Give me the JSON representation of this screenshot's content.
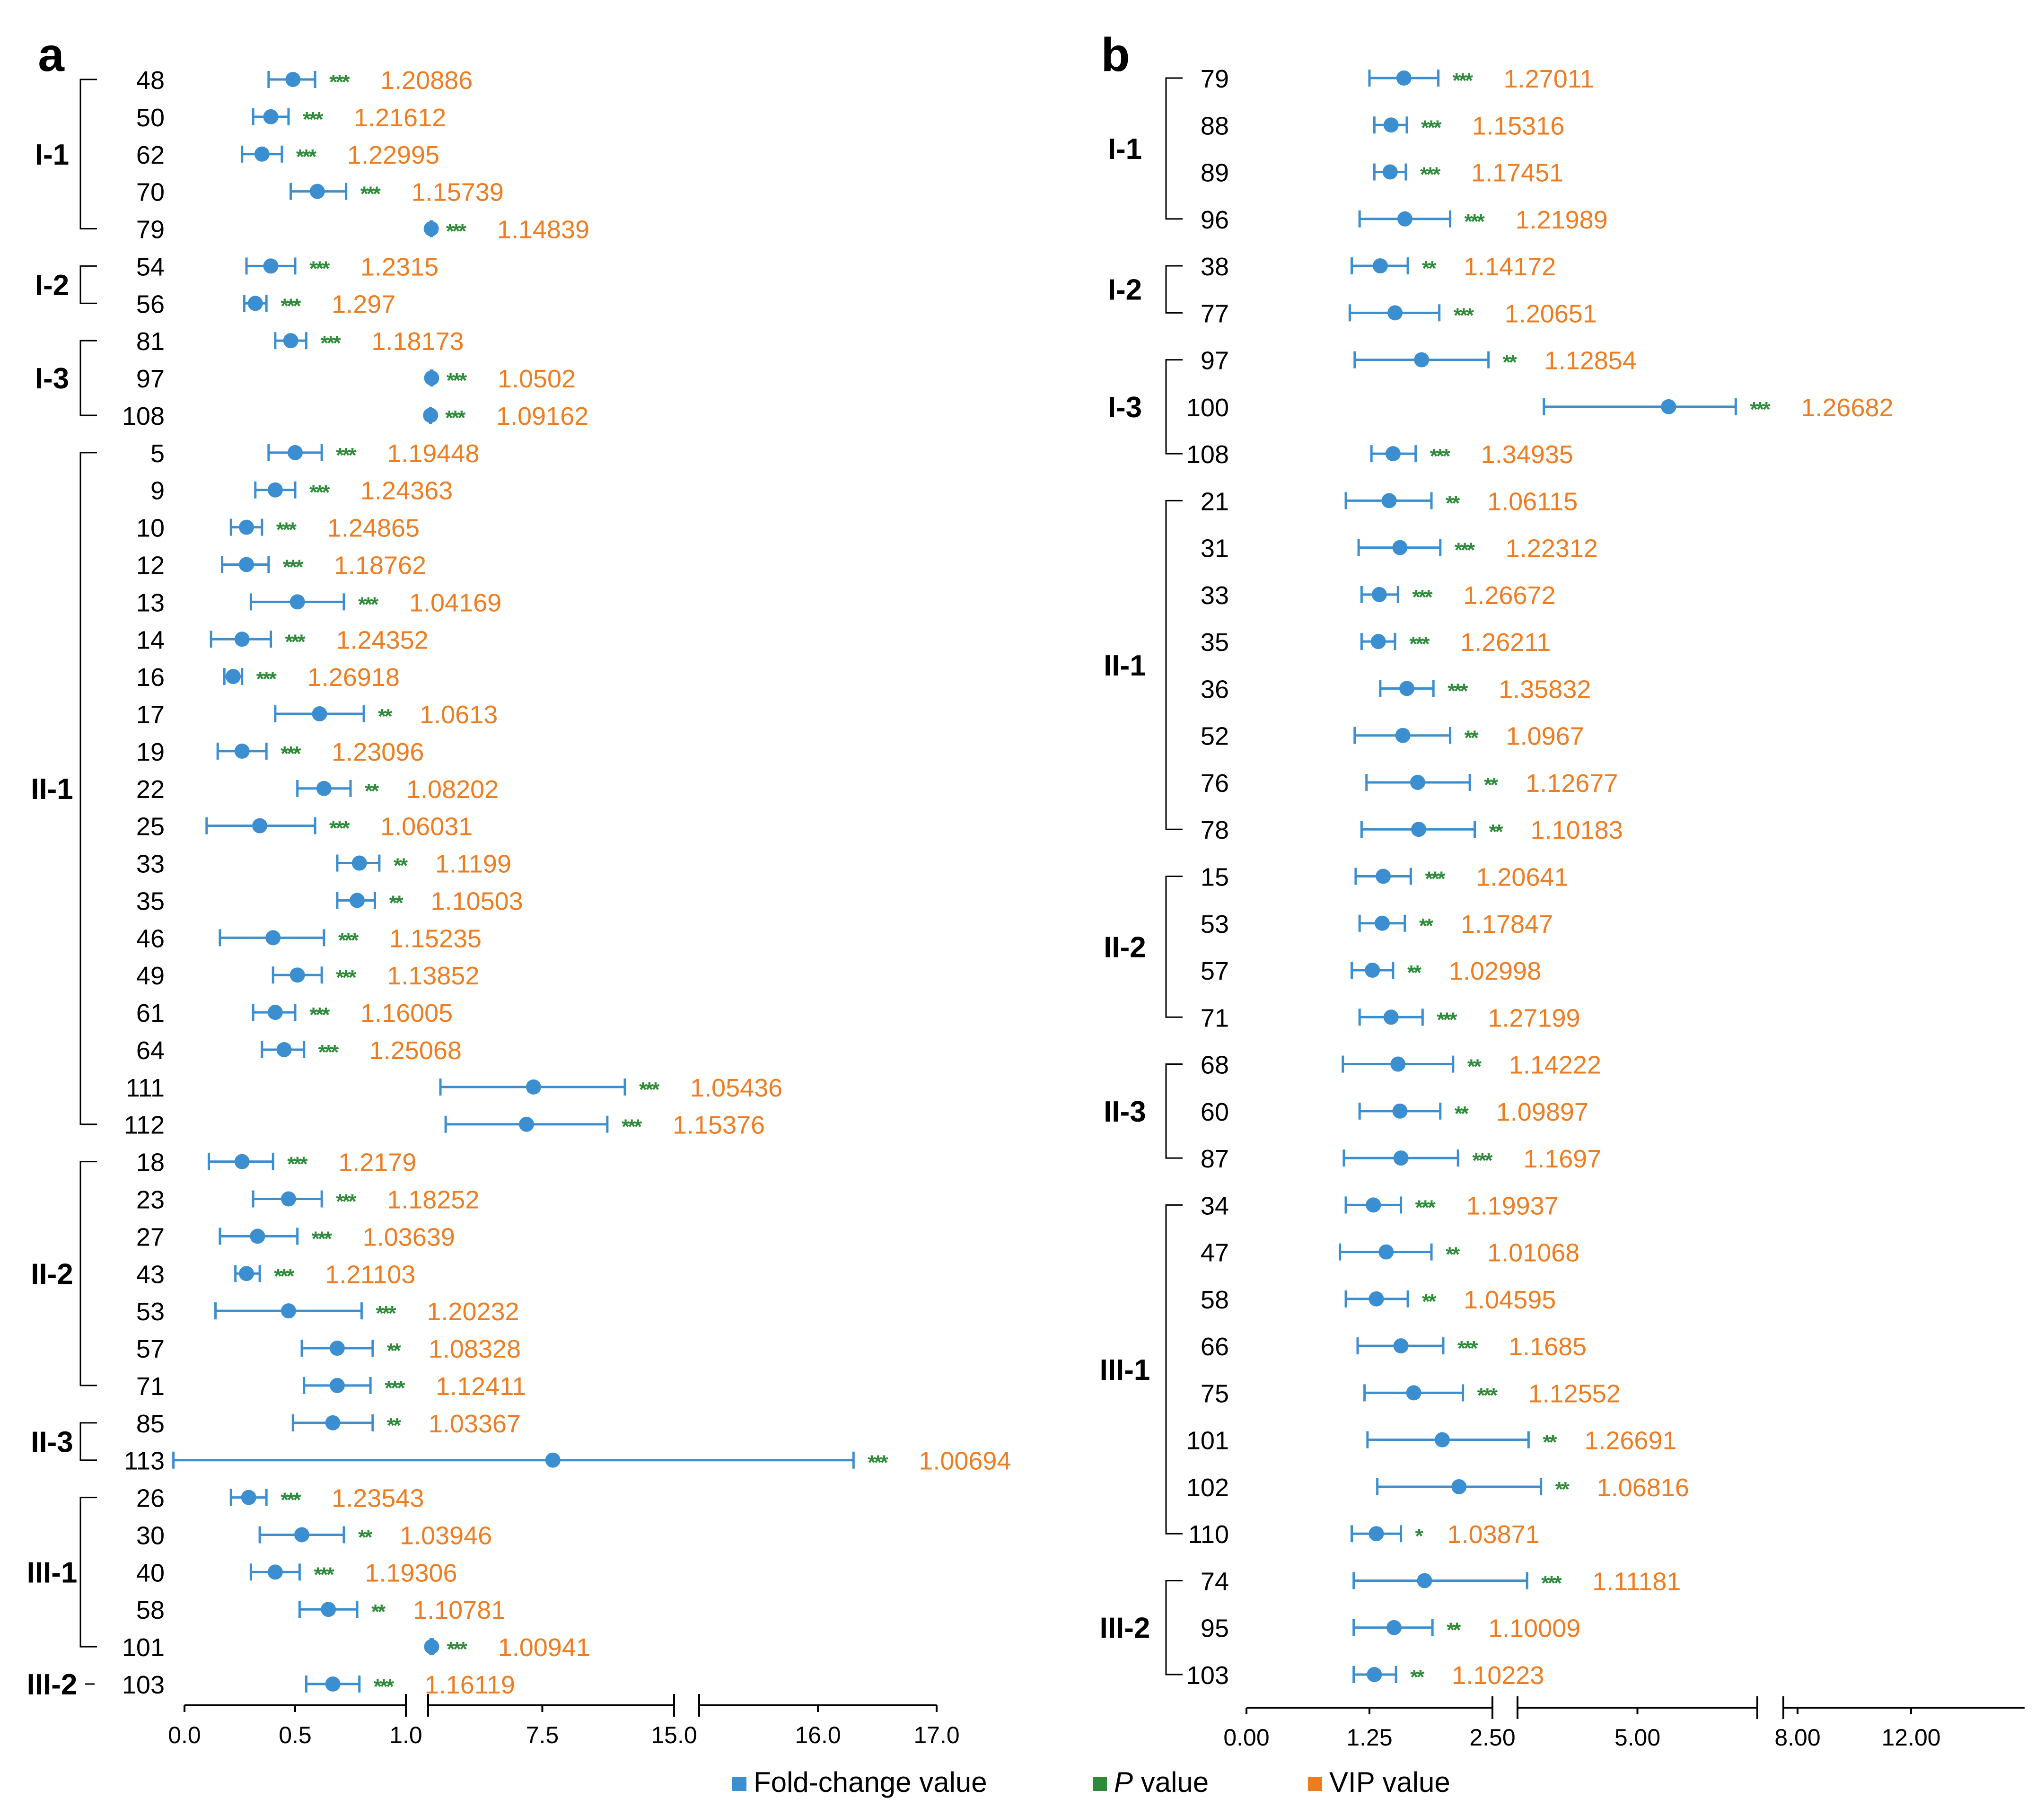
{
  "colors": {
    "fold_change": "#3b8fd0",
    "p_value": "#2e8b3a",
    "vip": "#ee7d22",
    "axis": "#000000"
  },
  "legend": [
    {
      "key": "fold_change",
      "label": "Fold-change value",
      "italic_prefix": ""
    },
    {
      "key": "p_value",
      "label": " value",
      "italic_prefix": "P"
    },
    {
      "key": "vip",
      "label": "VIP value",
      "italic_prefix": ""
    }
  ],
  "chart_data": [
    {
      "panel_label": "a",
      "type": "scatter",
      "title": "",
      "xlabel": "",
      "ylabel": "",
      "x_axis": {
        "segments": [
          {
            "range": [
              0,
              1.0
            ],
            "ticks": [
              "0.0",
              "0.5",
              "1.0"
            ],
            "tick_values": [
              0,
              0.5,
              1.0
            ]
          },
          {
            "range": [
              1.0,
              15.0
            ],
            "ticks": [
              "7.5",
              "15.0"
            ],
            "tick_values": [
              7.5,
              15.0
            ]
          },
          {
            "range": [
              15.0,
              17.0
            ],
            "ticks": [
              "16.0",
              "17.0"
            ],
            "tick_values": [
              16.0,
              17.0
            ]
          }
        ]
      },
      "groups": [
        {
          "name": "I-1",
          "items": [
            {
              "id": "48",
              "fc": 0.49,
              "lo": 0.38,
              "hi": 0.59,
              "p": "***",
              "vip": "1.20886"
            },
            {
              "id": "50",
              "fc": 0.39,
              "lo": 0.31,
              "hi": 0.47,
              "p": "***",
              "vip": "1.21612"
            },
            {
              "id": "62",
              "fc": 0.35,
              "lo": 0.26,
              "hi": 0.44,
              "p": "***",
              "vip": "1.22995"
            },
            {
              "id": "70",
              "fc": 0.6,
              "lo": 0.48,
              "hi": 0.73,
              "p": "***",
              "vip": "1.15739"
            },
            {
              "id": "79",
              "fc": 1.18,
              "lo": 1.16,
              "hi": 1.21,
              "p": "***",
              "vip": "1.14839"
            }
          ]
        },
        {
          "name": "I-2",
          "items": [
            {
              "id": "54",
              "fc": 0.39,
              "lo": 0.28,
              "hi": 0.5,
              "p": "***",
              "vip": "1.2315"
            },
            {
              "id": "56",
              "fc": 0.32,
              "lo": 0.27,
              "hi": 0.37,
              "p": "***",
              "vip": "1.297"
            }
          ]
        },
        {
          "name": "I-3",
          "items": [
            {
              "id": "81",
              "fc": 0.48,
              "lo": 0.41,
              "hi": 0.55,
              "p": "***",
              "vip": "1.18173"
            },
            {
              "id": "97",
              "fc": 1.2,
              "lo": 1.16,
              "hi": 1.24,
              "p": "***",
              "vip": "1.0502"
            },
            {
              "id": "108",
              "fc": 1.14,
              "lo": 1.12,
              "hi": 1.16,
              "p": "***",
              "vip": "1.09162"
            }
          ]
        },
        {
          "name": "II-1",
          "items": [
            {
              "id": "5",
              "fc": 0.5,
              "lo": 0.38,
              "hi": 0.62,
              "p": "***",
              "vip": "1.19448"
            },
            {
              "id": "9",
              "fc": 0.41,
              "lo": 0.32,
              "hi": 0.5,
              "p": "***",
              "vip": "1.24363"
            },
            {
              "id": "10",
              "fc": 0.28,
              "lo": 0.21,
              "hi": 0.35,
              "p": "***",
              "vip": "1.24865"
            },
            {
              "id": "12",
              "fc": 0.28,
              "lo": 0.17,
              "hi": 0.38,
              "p": "***",
              "vip": "1.18762"
            },
            {
              "id": "13",
              "fc": 0.51,
              "lo": 0.3,
              "hi": 0.72,
              "p": "***",
              "vip": "1.04169"
            },
            {
              "id": "14",
              "fc": 0.26,
              "lo": 0.12,
              "hi": 0.39,
              "p": "***",
              "vip": "1.24352"
            },
            {
              "id": "16",
              "fc": 0.22,
              "lo": 0.18,
              "hi": 0.26,
              "p": "***",
              "vip": "1.26918"
            },
            {
              "id": "17",
              "fc": 0.61,
              "lo": 0.41,
              "hi": 0.81,
              "p": "**",
              "vip": "1.0613"
            },
            {
              "id": "19",
              "fc": 0.26,
              "lo": 0.15,
              "hi": 0.37,
              "p": "***",
              "vip": "1.23096"
            },
            {
              "id": "22",
              "fc": 0.63,
              "lo": 0.51,
              "hi": 0.75,
              "p": "**",
              "vip": "1.08202"
            },
            {
              "id": "25",
              "fc": 0.34,
              "lo": 0.1,
              "hi": 0.59,
              "p": "***",
              "vip": "1.06031"
            },
            {
              "id": "33",
              "fc": 0.79,
              "lo": 0.69,
              "hi": 0.88,
              "p": "**",
              "vip": "1.1199"
            },
            {
              "id": "35",
              "fc": 0.78,
              "lo": 0.69,
              "hi": 0.86,
              "p": "**",
              "vip": "1.10503"
            },
            {
              "id": "46",
              "fc": 0.4,
              "lo": 0.16,
              "hi": 0.63,
              "p": "***",
              "vip": "1.15235"
            },
            {
              "id": "49",
              "fc": 0.51,
              "lo": 0.4,
              "hi": 0.62,
              "p": "***",
              "vip": "1.13852"
            },
            {
              "id": "61",
              "fc": 0.41,
              "lo": 0.31,
              "hi": 0.5,
              "p": "***",
              "vip": "1.16005"
            },
            {
              "id": "64",
              "fc": 0.45,
              "lo": 0.35,
              "hi": 0.54,
              "p": "***",
              "vip": "1.25068"
            },
            {
              "id": "111",
              "fc": 7.0,
              "lo": 1.7,
              "hi": 12.2,
              "p": "***",
              "vip": "1.05436"
            },
            {
              "id": "112",
              "fc": 6.6,
              "lo": 2.0,
              "hi": 11.2,
              "p": "***",
              "vip": "1.15376"
            }
          ]
        },
        {
          "name": "II-2",
          "items": [
            {
              "id": "18",
              "fc": 0.26,
              "lo": 0.11,
              "hi": 0.4,
              "p": "***",
              "vip": "1.2179"
            },
            {
              "id": "23",
              "fc": 0.47,
              "lo": 0.31,
              "hi": 0.62,
              "p": "***",
              "vip": "1.18252"
            },
            {
              "id": "27",
              "fc": 0.33,
              "lo": 0.16,
              "hi": 0.51,
              "p": "***",
              "vip": "1.03639"
            },
            {
              "id": "43",
              "fc": 0.28,
              "lo": 0.23,
              "hi": 0.34,
              "p": "***",
              "vip": "1.21103"
            },
            {
              "id": "53",
              "fc": 0.47,
              "lo": 0.14,
              "hi": 0.8,
              "p": "***",
              "vip": "1.20232"
            },
            {
              "id": "57",
              "fc": 0.69,
              "lo": 0.53,
              "hi": 0.85,
              "p": "**",
              "vip": "1.08328"
            },
            {
              "id": "71",
              "fc": 0.69,
              "lo": 0.54,
              "hi": 0.84,
              "p": "***",
              "vip": "1.12411"
            }
          ]
        },
        {
          "name": "II-3",
          "items": [
            {
              "id": "85",
              "fc": 0.67,
              "lo": 0.49,
              "hi": 0.85,
              "p": "**",
              "vip": "1.03367"
            },
            {
              "id": "113",
              "fc": 8.1,
              "lo": -0.05,
              "hi": 16.3,
              "p": "***",
              "vip": "1.00694"
            }
          ]
        },
        {
          "name": "III-1",
          "items": [
            {
              "id": "26",
              "fc": 0.29,
              "lo": 0.21,
              "hi": 0.37,
              "p": "***",
              "vip": "1.23543"
            },
            {
              "id": "30",
              "fc": 0.53,
              "lo": 0.34,
              "hi": 0.72,
              "p": "**",
              "vip": "1.03946"
            },
            {
              "id": "40",
              "fc": 0.41,
              "lo": 0.3,
              "hi": 0.52,
              "p": "***",
              "vip": "1.19306"
            },
            {
              "id": "58",
              "fc": 0.65,
              "lo": 0.52,
              "hi": 0.78,
              "p": "**",
              "vip": "1.10781"
            },
            {
              "id": "101",
              "fc": 1.2,
              "lo": 1.14,
              "hi": 1.26,
              "p": "***",
              "vip": "1.00941"
            }
          ]
        },
        {
          "name": "III-2",
          "items": [
            {
              "id": "103",
              "fc": 0.67,
              "lo": 0.55,
              "hi": 0.79,
              "p": "***",
              "vip": "1.16119"
            }
          ]
        }
      ]
    },
    {
      "panel_label": "b",
      "type": "scatter",
      "title": "",
      "xlabel": "",
      "ylabel": "",
      "x_axis": {
        "segments": [
          {
            "range": [
              0,
              2.5
            ],
            "ticks": [
              "0.00",
              "1.25",
              "2.50"
            ],
            "tick_values": [
              0,
              1.25,
              2.5
            ]
          },
          {
            "range": [
              2.5,
              7.5
            ],
            "ticks": [
              "5.00"
            ],
            "tick_values": [
              5.0
            ]
          },
          {
            "range": [
              7.5,
              16.0
            ],
            "ticks": [
              "8.00",
              "12.00"
            ],
            "tick_values": [
              8.0,
              12.0
            ]
          }
        ]
      },
      "groups": [
        {
          "name": "I-1",
          "items": [
            {
              "id": "79",
              "fc": 1.6,
              "lo": 1.25,
              "hi": 1.95,
              "p": "***",
              "vip": "1.27011"
            },
            {
              "id": "88",
              "fc": 1.47,
              "lo": 1.3,
              "hi": 1.63,
              "p": "***",
              "vip": "1.15316"
            },
            {
              "id": "89",
              "fc": 1.46,
              "lo": 1.3,
              "hi": 1.62,
              "p": "***",
              "vip": "1.17451"
            },
            {
              "id": "96",
              "fc": 1.61,
              "lo": 1.15,
              "hi": 2.07,
              "p": "***",
              "vip": "1.21989"
            }
          ]
        },
        {
          "name": "I-2",
          "items": [
            {
              "id": "38",
              "fc": 1.36,
              "lo": 1.07,
              "hi": 1.64,
              "p": "**",
              "vip": "1.14172"
            },
            {
              "id": "77",
              "fc": 1.51,
              "lo": 1.05,
              "hi": 1.96,
              "p": "***",
              "vip": "1.20651"
            }
          ]
        },
        {
          "name": "I-3",
          "items": [
            {
              "id": "97",
              "fc": 1.78,
              "lo": 1.1,
              "hi": 2.46,
              "p": "**",
              "vip": "1.12854"
            },
            {
              "id": "100",
              "fc": 5.65,
              "lo": 3.05,
              "hi": 7.05,
              "p": "***",
              "vip": "1.26682"
            },
            {
              "id": "108",
              "fc": 1.49,
              "lo": 1.27,
              "hi": 1.72,
              "p": "***",
              "vip": "1.34935"
            }
          ]
        },
        {
          "name": "II-1",
          "items": [
            {
              "id": "21",
              "fc": 1.45,
              "lo": 1.01,
              "hi": 1.88,
              "p": "**",
              "vip": "1.06115"
            },
            {
              "id": "31",
              "fc": 1.56,
              "lo": 1.14,
              "hi": 1.97,
              "p": "***",
              "vip": "1.22312"
            },
            {
              "id": "33",
              "fc": 1.35,
              "lo": 1.17,
              "hi": 1.54,
              "p": "***",
              "vip": "1.26672"
            },
            {
              "id": "35",
              "fc": 1.34,
              "lo": 1.17,
              "hi": 1.51,
              "p": "***",
              "vip": "1.26211"
            },
            {
              "id": "36",
              "fc": 1.63,
              "lo": 1.36,
              "hi": 1.9,
              "p": "***",
              "vip": "1.35832"
            },
            {
              "id": "52",
              "fc": 1.59,
              "lo": 1.1,
              "hi": 2.07,
              "p": "**",
              "vip": "1.0967"
            },
            {
              "id": "76",
              "fc": 1.74,
              "lo": 1.22,
              "hi": 2.27,
              "p": "**",
              "vip": "1.12677"
            },
            {
              "id": "78",
              "fc": 1.75,
              "lo": 1.17,
              "hi": 2.32,
              "p": "**",
              "vip": "1.10183"
            }
          ]
        },
        {
          "name": "II-2",
          "items": [
            {
              "id": "15",
              "fc": 1.39,
              "lo": 1.11,
              "hi": 1.67,
              "p": "***",
              "vip": "1.20641"
            },
            {
              "id": "53",
              "fc": 1.38,
              "lo": 1.15,
              "hi": 1.61,
              "p": "**",
              "vip": "1.17847"
            },
            {
              "id": "57",
              "fc": 1.28,
              "lo": 1.07,
              "hi": 1.49,
              "p": "**",
              "vip": "1.02998"
            },
            {
              "id": "71",
              "fc": 1.47,
              "lo": 1.15,
              "hi": 1.79,
              "p": "***",
              "vip": "1.27199"
            }
          ]
        },
        {
          "name": "II-3",
          "items": [
            {
              "id": "68",
              "fc": 1.54,
              "lo": 0.98,
              "hi": 2.1,
              "p": "**",
              "vip": "1.14222"
            },
            {
              "id": "60",
              "fc": 1.56,
              "lo": 1.15,
              "hi": 1.97,
              "p": "**",
              "vip": "1.09897"
            },
            {
              "id": "87",
              "fc": 1.57,
              "lo": 0.99,
              "hi": 2.15,
              "p": "***",
              "vip": "1.1697"
            }
          ]
        },
        {
          "name": "III-1",
          "items": [
            {
              "id": "34",
              "fc": 1.29,
              "lo": 1.01,
              "hi": 1.57,
              "p": "***",
              "vip": "1.19937"
            },
            {
              "id": "47",
              "fc": 1.42,
              "lo": 0.95,
              "hi": 1.88,
              "p": "**",
              "vip": "1.01068"
            },
            {
              "id": "58",
              "fc": 1.32,
              "lo": 1.01,
              "hi": 1.64,
              "p": "**",
              "vip": "1.04595"
            },
            {
              "id": "66",
              "fc": 1.57,
              "lo": 1.13,
              "hi": 2.0,
              "p": "***",
              "vip": "1.1685"
            },
            {
              "id": "75",
              "fc": 1.7,
              "lo": 1.2,
              "hi": 2.2,
              "p": "***",
              "vip": "1.12552"
            },
            {
              "id": "101",
              "fc": 1.99,
              "lo": 1.23,
              "hi": 2.73,
              "p": "**",
              "vip": "1.26691"
            },
            {
              "id": "102",
              "fc": 2.16,
              "lo": 1.33,
              "hi": 2.99,
              "p": "**",
              "vip": "1.06816"
            },
            {
              "id": "110",
              "fc": 1.32,
              "lo": 1.07,
              "hi": 1.57,
              "p": "*",
              "vip": "1.03871"
            }
          ]
        },
        {
          "name": "III-2",
          "items": [
            {
              "id": "74",
              "fc": 1.81,
              "lo": 1.09,
              "hi": 2.7,
              "p": "***",
              "vip": "1.11181"
            },
            {
              "id": "95",
              "fc": 1.5,
              "lo": 1.09,
              "hi": 1.89,
              "p": "**",
              "vip": "1.10009"
            },
            {
              "id": "103",
              "fc": 1.3,
              "lo": 1.09,
              "hi": 1.52,
              "p": "**",
              "vip": "1.10223"
            }
          ]
        }
      ]
    }
  ]
}
